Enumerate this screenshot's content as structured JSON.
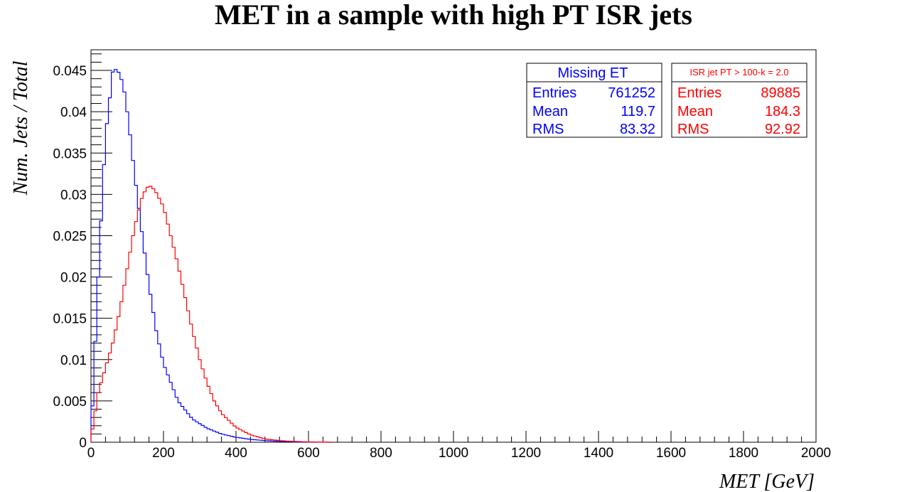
{
  "chart_data": {
    "type": "histogram",
    "title": "MET in a sample with high PT ISR jets",
    "xlabel": "MET [GeV]",
    "ylabel": "Num. Jets / Total",
    "xlim": [
      0,
      2000
    ],
    "ylim": [
      0,
      0.0475
    ],
    "x_ticks": [
      0,
      200,
      400,
      600,
      800,
      1000,
      1200,
      1400,
      1600,
      1800,
      2000
    ],
    "x_tick_labels": [
      "0",
      "200",
      "400",
      "600",
      "800",
      "1000",
      "1200",
      "1400",
      "1600",
      "1800",
      "2000"
    ],
    "y_ticks": [
      0,
      0.005,
      0.01,
      0.015,
      0.02,
      0.025,
      0.03,
      0.035,
      0.04,
      0.045
    ],
    "y_tick_labels": [
      "0",
      "0.005",
      "0.01",
      "0.015",
      "0.02",
      "0.025",
      "0.03",
      "0.035",
      "0.04",
      "0.045"
    ],
    "bin_width": 8,
    "series": [
      {
        "name": "Missing ET",
        "color": "#0000ff",
        "x": [
          0,
          20,
          40,
          60,
          70,
          80,
          90,
          100,
          110,
          120,
          140,
          160,
          180,
          200,
          240,
          280,
          320,
          360,
          400,
          440,
          480,
          520,
          560,
          600,
          660
        ],
        "y": [
          0.0005,
          0.02,
          0.037,
          0.0448,
          0.0452,
          0.0445,
          0.043,
          0.04,
          0.0365,
          0.0325,
          0.0255,
          0.019,
          0.0135,
          0.0095,
          0.005,
          0.0028,
          0.0017,
          0.001,
          0.0006,
          0.00035,
          0.0002,
          0.0001,
          5e-05,
          2e-05,
          0
        ]
      },
      {
        "name": "ISR jet PT > 100-k = 2.0",
        "color": "#ff0000",
        "x": [
          0,
          20,
          40,
          60,
          80,
          100,
          120,
          140,
          150,
          160,
          170,
          180,
          200,
          220,
          240,
          260,
          280,
          300,
          320,
          340,
          360,
          400,
          440,
          480,
          520,
          560,
          600,
          660
        ],
        "y": [
          0.0005,
          0.006,
          0.009,
          0.012,
          0.016,
          0.021,
          0.026,
          0.0295,
          0.0305,
          0.0311,
          0.0308,
          0.0302,
          0.0285,
          0.025,
          0.0215,
          0.0175,
          0.0135,
          0.01,
          0.0072,
          0.005,
          0.0035,
          0.0018,
          0.0009,
          0.0004,
          0.0002,
          0.0001,
          4e-05,
          0
        ]
      }
    ],
    "stats_boxes": [
      {
        "name": "Missing ET",
        "color": "#0000ff",
        "rows": [
          [
            "Entries",
            "761252"
          ],
          [
            "Mean",
            "119.7"
          ],
          [
            "RMS",
            "83.32"
          ]
        ]
      },
      {
        "name": "ISR jet PT > 100-k = 2.0",
        "color": "#ff0000",
        "rows": [
          [
            "Entries",
            "89885"
          ],
          [
            "Mean",
            "184.3"
          ],
          [
            "RMS",
            "92.92"
          ]
        ]
      }
    ]
  }
}
